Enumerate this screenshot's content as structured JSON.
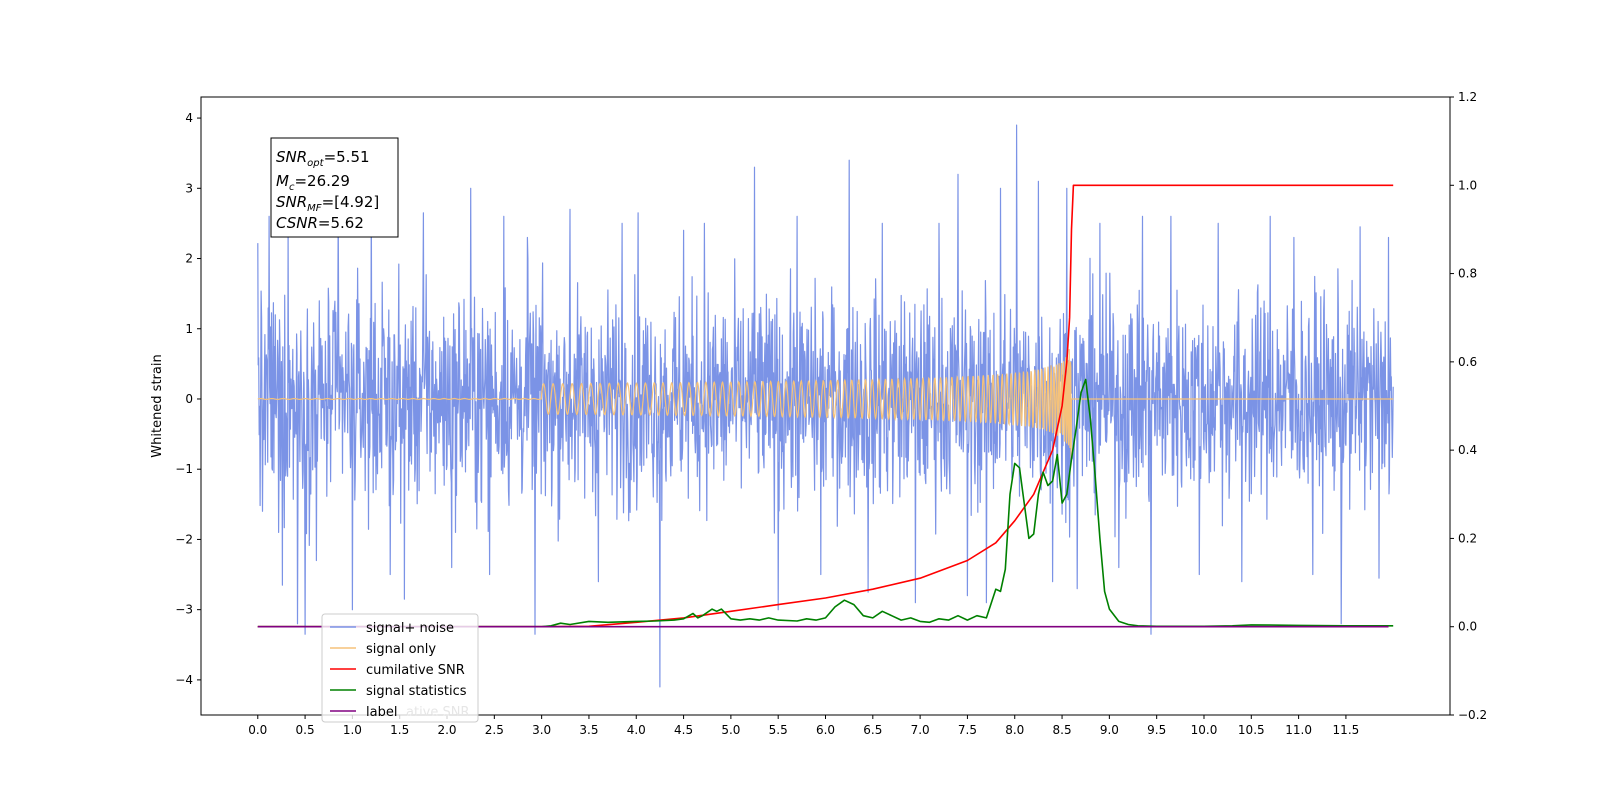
{
  "chart_data": {
    "type": "line",
    "title": "",
    "xlabel": "",
    "ylabel": "Whitened strain",
    "xlim": [
      -0.6,
      12.6
    ],
    "ylim": [
      -4.5,
      4.3
    ],
    "y2lim": [
      -0.2,
      1.2
    ],
    "x_ticks": [
      0.0,
      0.5,
      1.0,
      1.5,
      2.0,
      2.5,
      3.0,
      3.5,
      4.0,
      4.5,
      5.0,
      5.5,
      6.0,
      6.5,
      7.0,
      7.5,
      8.0,
      8.5,
      9.0,
      9.5,
      10.0,
      10.5,
      11.0,
      11.5
    ],
    "x_tick_labels": [
      "0.0",
      "0.5",
      "1.0",
      "1.5",
      "2.0",
      "2.5",
      "3.0",
      "3.5",
      "4.0",
      "4.5",
      "5.0",
      "5.5",
      "6.0",
      "6.5",
      "7.0",
      "7.5",
      "8.0",
      "8.5",
      "9.0",
      "9.5",
      "10.0",
      "10.5",
      "11.0",
      "11.5"
    ],
    "y_ticks": [
      -4,
      -3,
      -2,
      -1,
      0,
      1,
      2,
      3,
      4
    ],
    "y_tick_labels": [
      "−4",
      "−3",
      "−2",
      "−1",
      "0",
      "1",
      "2",
      "3",
      "4"
    ],
    "y2_ticks": [
      -0.2,
      0.0,
      0.2,
      0.4,
      0.6,
      0.8,
      1.0,
      1.2
    ],
    "y2_tick_labels": [
      "−0.2",
      "0.0",
      "0.2",
      "0.4",
      "0.6",
      "0.8",
      "1.0",
      "1.2"
    ],
    "annotation": {
      "lines": [
        {
          "var": "SNR",
          "sub": "opt",
          "value": "=5.51"
        },
        {
          "var": "M",
          "sub": "c",
          "value": "=26.29"
        },
        {
          "var": "SNR",
          "sub": "MF",
          "value": "=[4.92]"
        },
        {
          "var": "CSNR",
          "sub": "",
          "value": "=5.62"
        }
      ]
    },
    "legend": {
      "placement": "lower-left",
      "entries": [
        {
          "label": "signal+ noise",
          "color": "#7b93e6"
        },
        {
          "label": "signal only",
          "color": "#f5c27a"
        },
        {
          "label": "cumilative SNR",
          "color": "#ff0000"
        },
        {
          "label": "signal statistics",
          "color": "#008000"
        },
        {
          "label": "label",
          "color": "#800080"
        }
      ],
      "overlap_text": "ative SNR"
    },
    "series": [
      {
        "name": "signal+ noise",
        "axis": "left",
        "color": "#7b93e6",
        "x_range": [
          0.0,
          12.0
        ],
        "envelope": 1.2,
        "spikes": [
          {
            "x": 0.0,
            "y": 2.22
          },
          {
            "x": 0.05,
            "y": -1.6
          },
          {
            "x": 0.12,
            "y": 2.6
          },
          {
            "x": 0.22,
            "y": -1.9
          },
          {
            "x": 0.26,
            "y": -2.65
          },
          {
            "x": 0.32,
            "y": 2.4
          },
          {
            "x": 0.42,
            "y": -3.2
          },
          {
            "x": 0.5,
            "y": -3.35
          },
          {
            "x": 0.62,
            "y": -2.3
          },
          {
            "x": 0.85,
            "y": 2.7
          },
          {
            "x": 1.0,
            "y": -3.0
          },
          {
            "x": 1.2,
            "y": 2.9
          },
          {
            "x": 1.4,
            "y": -2.5
          },
          {
            "x": 1.55,
            "y": -2.85
          },
          {
            "x": 1.75,
            "y": 2.65
          },
          {
            "x": 2.05,
            "y": -2.4
          },
          {
            "x": 2.25,
            "y": 3.0
          },
          {
            "x": 2.45,
            "y": -2.5
          },
          {
            "x": 2.6,
            "y": 2.6
          },
          {
            "x": 2.85,
            "y": 2.3
          },
          {
            "x": 2.93,
            "y": -3.35
          },
          {
            "x": 3.3,
            "y": 2.7
          },
          {
            "x": 3.6,
            "y": -2.6
          },
          {
            "x": 3.85,
            "y": 2.5
          },
          {
            "x": 4.02,
            "y": 2.65
          },
          {
            "x": 4.25,
            "y": -4.1
          },
          {
            "x": 4.5,
            "y": 2.4
          },
          {
            "x": 4.72,
            "y": 2.5
          },
          {
            "x": 5.25,
            "y": 3.3
          },
          {
            "x": 5.5,
            "y": -3.0
          },
          {
            "x": 5.7,
            "y": 2.6
          },
          {
            "x": 5.95,
            "y": -2.5
          },
          {
            "x": 6.25,
            "y": 3.4
          },
          {
            "x": 6.45,
            "y": -2.75
          },
          {
            "x": 6.6,
            "y": 2.5
          },
          {
            "x": 6.95,
            "y": -2.9
          },
          {
            "x": 7.2,
            "y": 2.5
          },
          {
            "x": 7.4,
            "y": 3.2
          },
          {
            "x": 7.5,
            "y": -2.8
          },
          {
            "x": 7.7,
            "y": -2.9
          },
          {
            "x": 7.85,
            "y": 3.0
          },
          {
            "x": 8.02,
            "y": 3.9
          },
          {
            "x": 8.25,
            "y": 3.1
          },
          {
            "x": 8.4,
            "y": -2.6
          },
          {
            "x": 8.55,
            "y": 3.0
          },
          {
            "x": 8.66,
            "y": -2.7
          },
          {
            "x": 8.9,
            "y": 2.5
          },
          {
            "x": 9.1,
            "y": -2.4
          },
          {
            "x": 9.35,
            "y": 2.6
          },
          {
            "x": 9.44,
            "y": -3.35
          },
          {
            "x": 9.65,
            "y": 2.6
          },
          {
            "x": 9.95,
            "y": -2.5
          },
          {
            "x": 10.15,
            "y": 2.5
          },
          {
            "x": 10.4,
            "y": -2.6
          },
          {
            "x": 10.7,
            "y": 2.6
          },
          {
            "x": 10.95,
            "y": 2.3
          },
          {
            "x": 11.15,
            "y": -2.5
          },
          {
            "x": 11.45,
            "y": -3.2
          },
          {
            "x": 11.65,
            "y": 2.45
          },
          {
            "x": 11.85,
            "y": -2.55
          },
          {
            "x": 11.95,
            "y": 2.3
          }
        ]
      },
      {
        "name": "signal only",
        "axis": "left",
        "color": "#f5c27a",
        "x_range": [
          0.0,
          12.0
        ],
        "chirp_end": 8.6,
        "chirp_peak_amplitude": 0.95
      },
      {
        "name": "cumilative SNR",
        "axis": "right",
        "color": "#ff0000",
        "x": [
          0.0,
          1.0,
          2.0,
          3.0,
          3.5,
          4.0,
          4.5,
          5.0,
          5.5,
          6.0,
          6.5,
          7.0,
          7.5,
          7.8,
          8.0,
          8.2,
          8.4,
          8.5,
          8.55,
          8.58,
          8.6,
          8.62,
          12.0
        ],
        "values": [
          0.0,
          0.0,
          0.0,
          0.0,
          0.001,
          0.01,
          0.02,
          0.035,
          0.05,
          0.065,
          0.085,
          0.11,
          0.15,
          0.19,
          0.24,
          0.3,
          0.4,
          0.5,
          0.6,
          0.7,
          0.9,
          1.0,
          1.0
        ]
      },
      {
        "name": "signal statistics",
        "axis": "right",
        "color": "#008000",
        "x": [
          0.0,
          2.0,
          3.0,
          3.1,
          3.2,
          3.3,
          3.5,
          3.7,
          4.0,
          4.2,
          4.4,
          4.5,
          4.6,
          4.65,
          4.7,
          4.8,
          4.85,
          4.9,
          5.0,
          5.1,
          5.2,
          5.3,
          5.4,
          5.5,
          5.7,
          5.8,
          5.9,
          6.0,
          6.1,
          6.2,
          6.3,
          6.4,
          6.5,
          6.6,
          6.7,
          6.8,
          6.9,
          7.0,
          7.1,
          7.2,
          7.3,
          7.4,
          7.5,
          7.6,
          7.7,
          7.8,
          7.85,
          7.9,
          7.95,
          8.0,
          8.05,
          8.1,
          8.15,
          8.2,
          8.25,
          8.3,
          8.35,
          8.4,
          8.45,
          8.5,
          8.55,
          8.6,
          8.65,
          8.7,
          8.75,
          8.8,
          8.85,
          8.9,
          8.95,
          9.0,
          9.1,
          9.2,
          9.3,
          9.5,
          10.0,
          10.3,
          10.5,
          11.0,
          11.5,
          12.0
        ],
        "values": [
          0.0,
          0.0,
          0.0,
          0.002,
          0.008,
          0.005,
          0.012,
          0.01,
          0.012,
          0.013,
          0.015,
          0.018,
          0.03,
          0.02,
          0.025,
          0.04,
          0.035,
          0.04,
          0.018,
          0.015,
          0.018,
          0.015,
          0.02,
          0.015,
          0.013,
          0.018,
          0.015,
          0.02,
          0.045,
          0.06,
          0.05,
          0.025,
          0.02,
          0.035,
          0.025,
          0.015,
          0.02,
          0.012,
          0.01,
          0.018,
          0.015,
          0.025,
          0.015,
          0.025,
          0.02,
          0.085,
          0.08,
          0.13,
          0.3,
          0.37,
          0.36,
          0.28,
          0.2,
          0.21,
          0.3,
          0.35,
          0.32,
          0.33,
          0.39,
          0.28,
          0.3,
          0.38,
          0.45,
          0.53,
          0.56,
          0.47,
          0.34,
          0.2,
          0.08,
          0.04,
          0.012,
          0.005,
          0.002,
          0.001,
          0.001,
          0.002,
          0.004,
          0.003,
          0.002,
          0.002
        ]
      },
      {
        "name": "label",
        "axis": "right",
        "color": "#800080",
        "x": [
          0.0,
          11.95
        ],
        "values": [
          0.0,
          0.0
        ]
      }
    ]
  }
}
